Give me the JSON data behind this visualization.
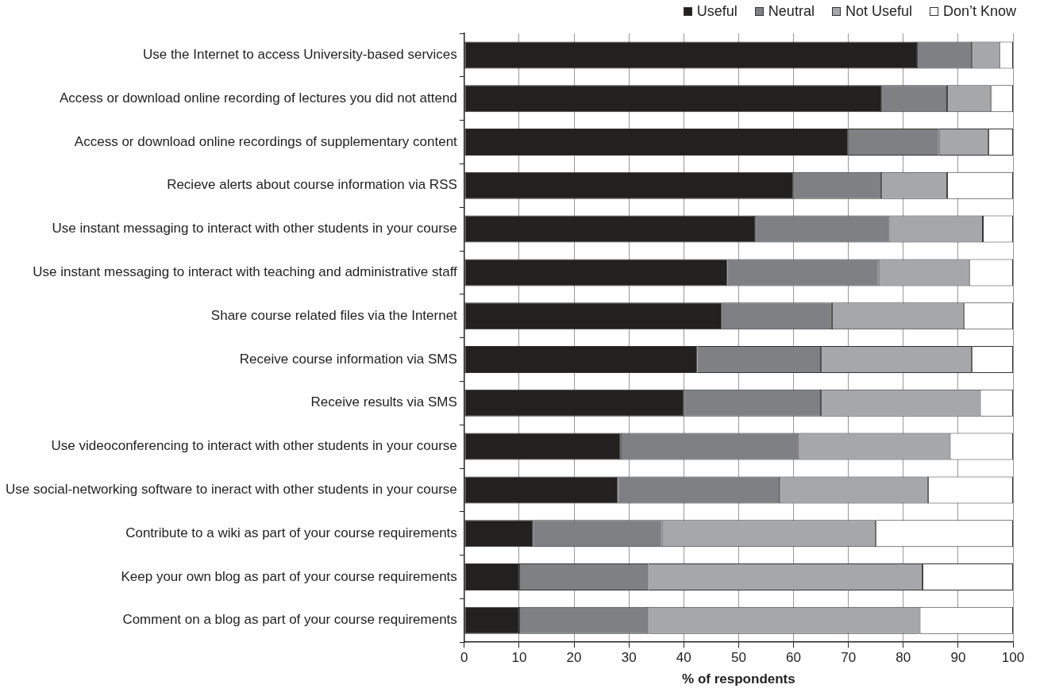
{
  "chart_data": {
    "type": "bar",
    "orientation": "horizontal",
    "stacked": true,
    "xlabel": "% of respondents",
    "categories": [
      "Use the Internet to access University-based services",
      "Access or download online recording of lectures you did not attend",
      "Access or download online recordings of supplementary content",
      "Recieve alerts about course information via RSS",
      "Use instant messaging to interact with other students in your course",
      "Use instant messaging to interact with teaching and administrative staff",
      "Share course related files via the Internet",
      "Receive course information via SMS",
      "Receive results via SMS",
      "Use videoconferencing to interact with other students in your course",
      "Use social-networking software to ineract with other students in your course",
      "Contribute to a wiki as part of your course requirements",
      "Keep your own blog as part of your course requirements",
      "Comment on a blog as part of your course requirements"
    ],
    "series": [
      {
        "name": "Useful",
        "color": "#222120",
        "values": [
          82.5,
          76,
          70,
          60,
          53,
          48,
          47,
          42.5,
          40,
          28.5,
          28,
          12.5,
          10,
          10
        ]
      },
      {
        "name": "Neutral",
        "color": "#7e8083",
        "values": [
          10,
          12,
          16.5,
          16,
          24.5,
          27.5,
          20,
          22.5,
          25,
          32.5,
          29.5,
          23.5,
          23.5,
          23.5
        ]
      },
      {
        "name": "Not Useful",
        "color": "#a6a7a9",
        "values": [
          5,
          8,
          9,
          12,
          17,
          16.5,
          24,
          27.5,
          29,
          27.5,
          27,
          39,
          50,
          49.5
        ]
      },
      {
        "name": "Don’t Know",
        "color": "#ffffff",
        "values": [
          2.5,
          4,
          4.5,
          12,
          5.5,
          8,
          9,
          7.5,
          6,
          11.5,
          15.5,
          25,
          16.5,
          17
        ]
      }
    ],
    "xlim": [
      0,
      100
    ],
    "xticks": [
      0,
      10,
      20,
      30,
      40,
      50,
      60,
      70,
      80,
      90,
      100
    ],
    "grid": "x",
    "legend": "top right"
  }
}
